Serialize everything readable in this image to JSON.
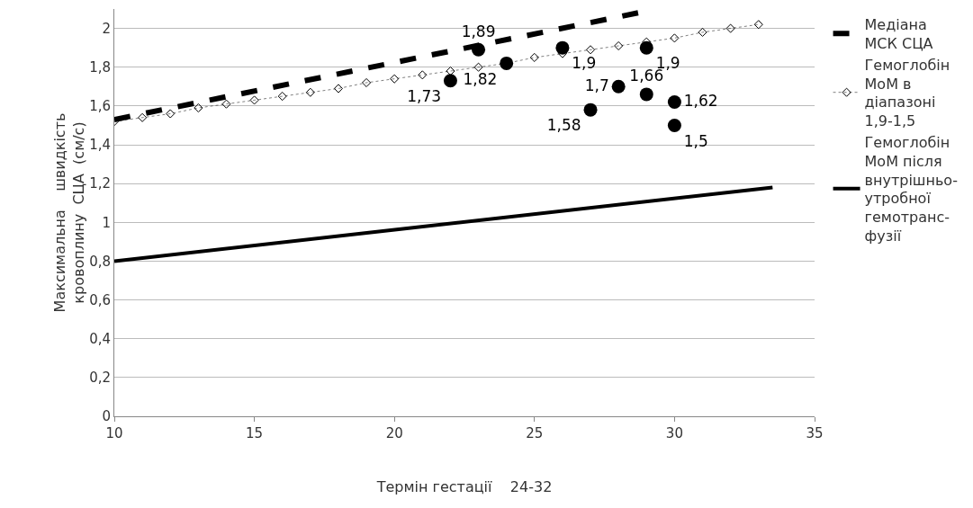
{
  "chart_data": {
    "type": "line",
    "xlabel": "Термін гестації    24-32",
    "ylabel": "Максимальна    швидкість кровоплину  СЦА  (см/с)",
    "xlim": [
      10,
      35
    ],
    "xticks": [
      10,
      15,
      20,
      25,
      30,
      35
    ],
    "ylim": [
      0,
      2.1
    ],
    "yticks": [
      0,
      {
        "value": 0.2,
        "label": "0,2"
      },
      {
        "value": 0.4,
        "label": "0,4"
      },
      {
        "value": 0.6,
        "label": "0,6"
      },
      {
        "value": 0.8,
        "label": "0,8"
      },
      1,
      {
        "value": 1.2,
        "label": "1,2"
      },
      {
        "value": 1.4,
        "label": "1,4"
      },
      {
        "value": 1.6,
        "label": "1,6"
      },
      {
        "value": 1.8,
        "label": "1,8"
      },
      2
    ],
    "grid": "y",
    "legend": "right",
    "series": [
      {
        "name": "Медіана МСК СЦА",
        "type": "line",
        "color": "#000000",
        "line_style": "dashed",
        "marker": "none",
        "x": [
          10,
          28.7
        ],
        "values": [
          1.53,
          2.08
        ]
      },
      {
        "name": "Гемоглобін МоМ в діапазоні 1,9-1,5",
        "type": "line",
        "color": "#000000",
        "line_style": "dotted",
        "marker": "diamond",
        "x": [
          10,
          11,
          12,
          13,
          14,
          15,
          16,
          17,
          18,
          19,
          20,
          21,
          22,
          23,
          24,
          25,
          26,
          27,
          28,
          29,
          30,
          31,
          32,
          33
        ],
        "values": [
          1.52,
          1.54,
          1.56,
          1.59,
          1.61,
          1.63,
          1.65,
          1.67,
          1.69,
          1.72,
          1.74,
          1.76,
          1.78,
          1.8,
          1.82,
          1.85,
          1.87,
          1.89,
          1.91,
          1.93,
          1.95,
          1.98,
          2.0,
          2.02
        ]
      },
      {
        "name": "Гемоглобін МоМ після внутрішньо-утробної гемотранс-фузії",
        "type": "line",
        "color": "#000000",
        "line_style": "solid",
        "marker": "none",
        "x": [
          10,
          33.5
        ],
        "values": [
          0.8,
          1.18
        ]
      },
      {
        "type": "scatter",
        "color": "#000000",
        "marker": "circle",
        "x": [
          22,
          23,
          24,
          26,
          27,
          28,
          29,
          29,
          30,
          30
        ],
        "values": [
          1.73,
          1.89,
          1.82,
          1.9,
          1.58,
          1.7,
          1.66,
          1.9,
          1.62,
          1.5
        ],
        "value_labels": [
          "1,73",
          "1,89",
          "1,82",
          "1,9",
          "1,58",
          "1,7",
          "1,66",
          "1,9",
          "1,62",
          "1,5"
        ]
      }
    ]
  }
}
